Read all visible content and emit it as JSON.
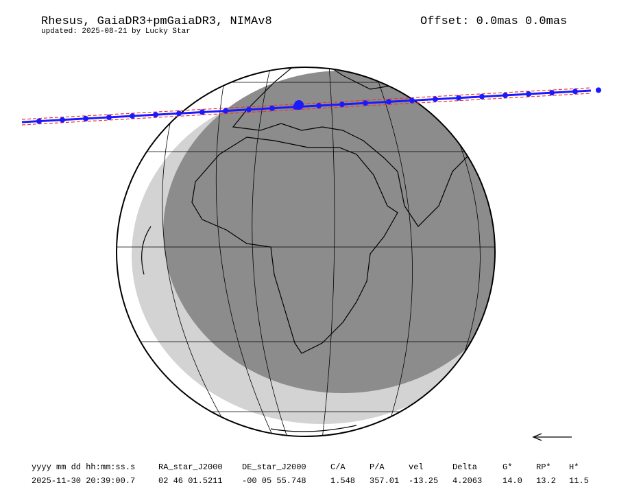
{
  "header": {
    "title": "Rhesus, GaiaDR3+pmGaiaDR3, NIMAv8",
    "subtitle": "updated: 2025-08-21 by Lucky Star",
    "offset": "Offset: 0.0mas 0.0mas"
  },
  "table": {
    "columns": [
      "yyyy mm dd hh:mm:ss.s",
      "RA_star_J2000",
      "DE_star_J2000",
      "C/A",
      "P/A",
      "vel",
      "Delta",
      "G*",
      "RP*",
      "H*"
    ],
    "rows": [
      [
        "2025-11-30 20:39:00.7",
        "02 46 01.5211",
        "-00 05 55.748",
        "1.548",
        "357.01",
        "-13.25",
        "4.2063",
        "14.0",
        "13.2",
        "11.5"
      ]
    ]
  }
}
